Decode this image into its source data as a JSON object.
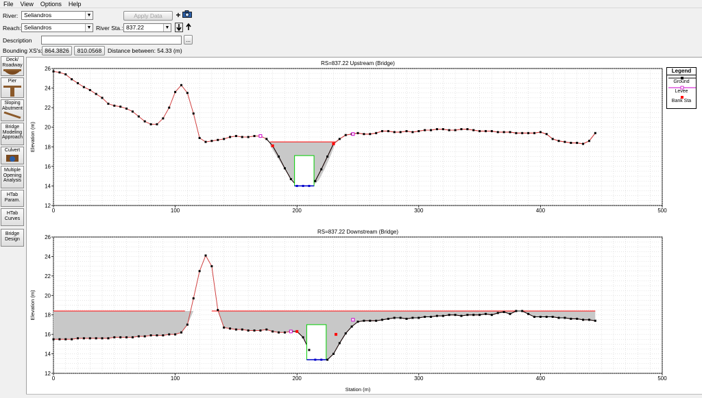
{
  "menu": [
    "File",
    "View",
    "Options",
    "Help"
  ],
  "form": {
    "river_label": "River:",
    "river_value": "Seliandros",
    "reach_label": "Reach:",
    "reach_value": "Seliandros",
    "river_sta_label": "River Sta.:",
    "river_sta_value": "837.22",
    "apply_data": "Apply Data",
    "description_label": "Description",
    "description_value": "",
    "more_button": "...",
    "bounding_label": "Bounding XS's:",
    "bounding_up": "864.3826",
    "bounding_down": "810.0568",
    "distance_text": "Distance between: 54.33 (m)"
  },
  "icons": {
    "add": "plus-icon",
    "camera": "camera-icon",
    "down": "arrow-down-icon",
    "up": "arrow-up-icon"
  },
  "toolbar": [
    {
      "label": "Deck/ Roadway",
      "icon": "deck-icon"
    },
    {
      "label": "Pier",
      "icon": "pier-icon"
    },
    {
      "label": "Sloping Abutment",
      "icon": "abutment-icon"
    },
    {
      "label": "Bridge Modeling Approach",
      "icon": ""
    },
    {
      "label": "Culvert",
      "icon": "culvert-icon"
    },
    {
      "label": "Multiple Opening Analysis",
      "icon": ""
    },
    {
      "label": "HTab Param.",
      "icon": ""
    },
    {
      "label": "HTab Curves",
      "icon": ""
    },
    {
      "label": "Bridge Design",
      "icon": ""
    }
  ],
  "legend": {
    "title": "Legend",
    "items": [
      {
        "label": "Ground",
        "color": "#000000"
      },
      {
        "label": "Levee",
        "color": "#cc00cc"
      },
      {
        "label": "Bank Sta",
        "color": "#ff0000"
      }
    ]
  },
  "colors": {
    "ground": "#000000",
    "deck": "#ff0000",
    "fill": "#c8c8c8",
    "bank": "#ff0000",
    "levee": "#cc00cc",
    "culvert": "#00cc00",
    "bottom": "#0000cc"
  },
  "chart_data": [
    {
      "type": "line",
      "title": "RS=837.22  Upstream  (Bridge)",
      "xlabel": "",
      "ylabel": "Elevation (m)",
      "xlim": [
        0,
        500
      ],
      "ylim": [
        12,
        26
      ],
      "xticks": [
        0,
        100,
        200,
        300,
        400,
        500
      ],
      "yticks": [
        12,
        14,
        16,
        18,
        20,
        22,
        24,
        26
      ],
      "grid": true,
      "series": [
        {
          "name": "Ground",
          "x": [
            0,
            5,
            10,
            15,
            20,
            25,
            30,
            35,
            40,
            45,
            50,
            55,
            60,
            65,
            70,
            75,
            80,
            85,
            90,
            95,
            100,
            105,
            110,
            115,
            120,
            125,
            130,
            135,
            140,
            145,
            150,
            155,
            160,
            165,
            170,
            175,
            180,
            185,
            190,
            195,
            200,
            205,
            210,
            215,
            220,
            225,
            230,
            235,
            240,
            245,
            250,
            255,
            260,
            265,
            270,
            275,
            280,
            285,
            290,
            295,
            300,
            305,
            310,
            315,
            320,
            325,
            330,
            335,
            340,
            345,
            350,
            355,
            360,
            365,
            370,
            375,
            380,
            385,
            390,
            395,
            400,
            405,
            410,
            415,
            420,
            425,
            430,
            435,
            440,
            445
          ],
          "y": [
            25.7,
            25.6,
            25.4,
            24.9,
            24.5,
            24.1,
            23.8,
            23.4,
            23.0,
            22.4,
            22.2,
            22.1,
            21.9,
            21.6,
            21.1,
            20.6,
            20.3,
            20.3,
            20.9,
            22.0,
            23.6,
            24.3,
            23.5,
            21.4,
            18.9,
            18.5,
            18.6,
            18.7,
            18.8,
            19.0,
            19.1,
            19.0,
            19.0,
            19.1,
            19.1,
            18.8,
            18.1,
            17.0,
            15.8,
            14.7,
            14.0,
            14.0,
            14.0,
            14.5,
            15.7,
            17.0,
            18.3,
            18.8,
            19.2,
            19.3,
            19.4,
            19.3,
            19.3,
            19.4,
            19.6,
            19.6,
            19.5,
            19.5,
            19.6,
            19.5,
            19.6,
            19.7,
            19.7,
            19.8,
            19.8,
            19.7,
            19.7,
            19.8,
            19.8,
            19.7,
            19.6,
            19.6,
            19.6,
            19.5,
            19.5,
            19.5,
            19.4,
            19.4,
            19.4,
            19.4,
            19.5,
            19.3,
            18.8,
            18.6,
            18.5,
            18.4,
            18.4,
            18.3,
            18.6,
            19.4
          ]
        },
        {
          "name": "Deck",
          "x": [
            178,
            232
          ],
          "y": [
            18.5,
            18.5
          ]
        }
      ],
      "fill_between": {
        "x": [
          178,
          182,
          187,
          192,
          197,
          202,
          213,
          218,
          223,
          228,
          232
        ],
        "y_low": [
          18.1,
          17.3,
          16.3,
          15.3,
          14.5,
          14.0,
          14.0,
          14.6,
          15.8,
          17.2,
          18.5
        ],
        "y_high": 18.5
      },
      "culvert": {
        "x": [
          198,
          214
        ],
        "y": [
          14.0,
          17.1
        ]
      },
      "bank_stations": [
        {
          "x": 180,
          "y": 18.1
        },
        {
          "x": 230,
          "y": 18.3
        }
      ],
      "levees": [
        {
          "x": 170,
          "y": 19.1
        },
        {
          "x": 246,
          "y": 19.3
        }
      ]
    },
    {
      "type": "line",
      "title": "RS=837.22  Downstream  (Bridge)",
      "xlabel": "Station (m)",
      "ylabel": "Elevation (m)",
      "xlim": [
        0,
        500
      ],
      "ylim": [
        12,
        26
      ],
      "xticks": [
        0,
        100,
        200,
        300,
        400,
        500
      ],
      "yticks": [
        12,
        14,
        16,
        18,
        20,
        22,
        24,
        26
      ],
      "grid": true,
      "series": [
        {
          "name": "Ground",
          "x": [
            0,
            5,
            10,
            15,
            20,
            25,
            30,
            35,
            40,
            45,
            50,
            55,
            60,
            65,
            70,
            75,
            80,
            85,
            90,
            95,
            100,
            105,
            110,
            115,
            120,
            125,
            130,
            135,
            140,
            145,
            150,
            155,
            160,
            165,
            170,
            175,
            180,
            185,
            190,
            195,
            200,
            205,
            210,
            215,
            220,
            225,
            230,
            235,
            240,
            245,
            250,
            255,
            260,
            265,
            270,
            275,
            280,
            285,
            290,
            295,
            300,
            305,
            310,
            315,
            320,
            325,
            330,
            335,
            340,
            345,
            350,
            355,
            360,
            365,
            370,
            375,
            380,
            385,
            390,
            395,
            400,
            405,
            410,
            415,
            420,
            425,
            430,
            435,
            440,
            445
          ],
          "y": [
            15.5,
            15.5,
            15.5,
            15.5,
            15.6,
            15.6,
            15.6,
            15.6,
            15.6,
            15.6,
            15.7,
            15.7,
            15.7,
            15.7,
            15.8,
            15.8,
            15.9,
            15.9,
            15.9,
            16.0,
            16.0,
            16.2,
            17.0,
            19.7,
            22.5,
            24.1,
            23.0,
            18.5,
            16.7,
            16.6,
            16.5,
            16.5,
            16.4,
            16.4,
            16.4,
            16.5,
            16.3,
            16.2,
            16.2,
            16.3,
            16.3,
            15.7,
            14.4,
            13.4,
            13.4,
            13.4,
            14.0,
            15.1,
            16.1,
            16.8,
            17.3,
            17.4,
            17.4,
            17.4,
            17.5,
            17.6,
            17.7,
            17.7,
            17.6,
            17.7,
            17.7,
            17.8,
            17.8,
            17.9,
            17.9,
            18.0,
            18.0,
            17.9,
            18.0,
            18.0,
            18.0,
            18.1,
            18.0,
            18.2,
            18.3,
            18.1,
            18.4,
            18.4,
            18.1,
            17.8,
            17.8,
            17.8,
            17.8,
            17.7,
            17.7,
            17.6,
            17.6,
            17.5,
            17.5,
            17.4
          ]
        },
        {
          "name": "Deck",
          "x": [
            0,
            108,
            130,
            445
          ],
          "y": [
            18.4,
            18.4,
            18.4,
            18.4
          ]
        }
      ],
      "fill_low": {
        "x": [
          0,
          5,
          10,
          15,
          20,
          25,
          30,
          35,
          40,
          45,
          50,
          55,
          60,
          65,
          70,
          75,
          80,
          85,
          90,
          95,
          100,
          105,
          110,
          115,
          120,
          125,
          130,
          135,
          140,
          145,
          150,
          155,
          160,
          165,
          170,
          175,
          180,
          185,
          190,
          195,
          200,
          205,
          210,
          215,
          220,
          225,
          230,
          235,
          240,
          245,
          250,
          255,
          260,
          265,
          270,
          275,
          280,
          285,
          290,
          295,
          300,
          305,
          310,
          315,
          320,
          325,
          330,
          335,
          340,
          345,
          350,
          355,
          360,
          365,
          370,
          375,
          380,
          385,
          390,
          395,
          400,
          405,
          410,
          415,
          420,
          425,
          430,
          435,
          440,
          445
        ],
        "y_high": 18.4
      },
      "culvert": {
        "x": [
          208,
          224
        ],
        "y": [
          13.4,
          17.0
        ]
      },
      "bank_stations": [
        {
          "x": 200,
          "y": 16.3
        },
        {
          "x": 232,
          "y": 16.0
        }
      ],
      "levees": [
        {
          "x": 195,
          "y": 16.3
        },
        {
          "x": 246,
          "y": 17.5
        }
      ]
    }
  ]
}
